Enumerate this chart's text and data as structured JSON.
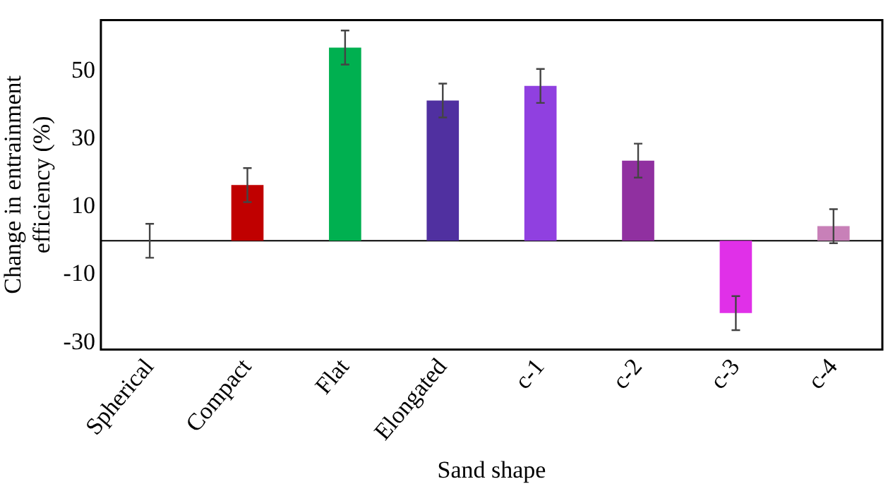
{
  "chart_data": {
    "type": "bar",
    "xlabel": "Sand shape",
    "ylabel": "Change in entrainment efficiency (%)",
    "categories": [
      "Spherical",
      "Compact",
      "Flat",
      "Elongated",
      "c-1",
      "c-2",
      "c-3",
      "c-4"
    ],
    "values": [
      0,
      16.4,
      56.9,
      41.3,
      45.6,
      23.6,
      -21.3,
      4.3
    ],
    "colors": [
      "#808080",
      "#c00000",
      "#00b050",
      "#5030a0",
      "#9040e0",
      "#9030a0",
      "#e030e8",
      "#c880b8"
    ],
    "errors": [
      5,
      5,
      5,
      5,
      5,
      5,
      5,
      5
    ],
    "ylim": [
      -32,
      65
    ],
    "yticks": [
      -30,
      -10,
      10,
      30,
      50
    ],
    "ref_lines": [
      {
        "axis": "y",
        "value": 0,
        "color": "#000000"
      }
    ],
    "grid": false,
    "legend": false
  }
}
